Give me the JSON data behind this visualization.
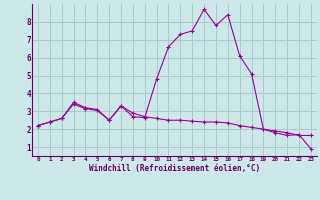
{
  "xlabel": "Windchill (Refroidissement éolien,°C)",
  "background_color": "#cce8e8",
  "line_color": "#990099",
  "grid_color": "#aacccc",
  "x": [
    0,
    1,
    2,
    3,
    4,
    5,
    6,
    7,
    8,
    9,
    10,
    11,
    12,
    13,
    14,
    15,
    16,
    17,
    18,
    19,
    20,
    21,
    22,
    23
  ],
  "line1": [
    2.2,
    2.4,
    2.6,
    3.5,
    3.2,
    3.1,
    2.5,
    3.3,
    2.7,
    2.65,
    4.8,
    6.6,
    7.3,
    7.5,
    8.7,
    7.8,
    8.4,
    6.1,
    5.1,
    2.0,
    1.8,
    1.65,
    1.7,
    0.9
  ],
  "line2": [
    2.2,
    2.4,
    2.6,
    3.4,
    3.15,
    3.05,
    2.5,
    3.3,
    2.9,
    2.7,
    2.6,
    2.5,
    2.5,
    2.45,
    2.4,
    2.4,
    2.35,
    2.2,
    2.1,
    2.0,
    1.9,
    1.8,
    1.65,
    1.65
  ],
  "ylim": [
    0.5,
    9.0
  ],
  "xlim": [
    -0.5,
    23.5
  ],
  "yticks": [
    1,
    2,
    3,
    4,
    5,
    6,
    7,
    8
  ],
  "xticks": [
    0,
    1,
    2,
    3,
    4,
    5,
    6,
    7,
    8,
    9,
    10,
    11,
    12,
    13,
    14,
    15,
    16,
    17,
    18,
    19,
    20,
    21,
    22,
    23
  ]
}
